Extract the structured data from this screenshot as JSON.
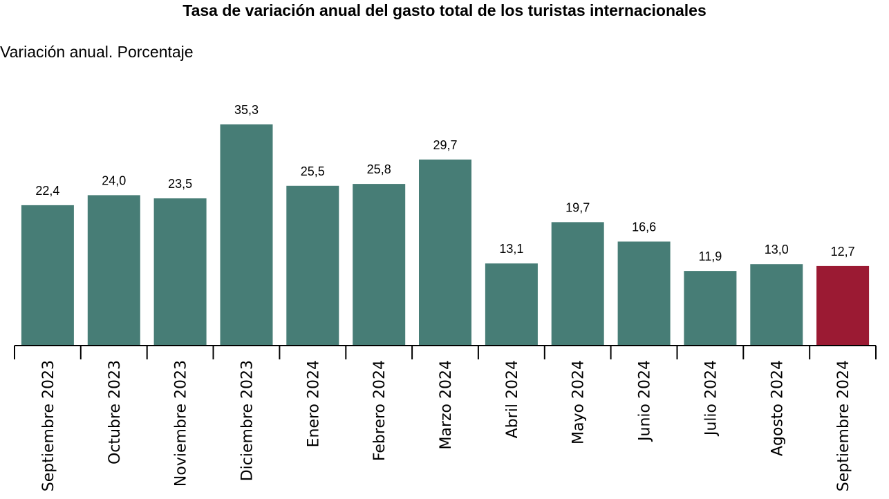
{
  "chart_data": {
    "type": "bar",
    "title": "Tasa de variación anual del gasto total de los turistas internacionales",
    "subtitle": "Variación anual. Porcentaje",
    "categories": [
      "Septiembre 2023",
      "Octubre 2023",
      "Noviembre 2023",
      "Diciembre 2023",
      "Enero 2024",
      "Febrero 2024",
      "Marzo 2024",
      "Abril 2024",
      "Mayo 2024",
      "Junio 2024",
      "Julio 2024",
      "Agosto 2024",
      "Septiembre 2024"
    ],
    "values": [
      22.4,
      24.0,
      23.5,
      35.3,
      25.5,
      25.8,
      29.7,
      13.1,
      19.7,
      16.6,
      11.9,
      13.0,
      12.7
    ],
    "value_labels": [
      "22,4",
      "24,0",
      "23,5",
      "35,3",
      "25,5",
      "25,8",
      "29,7",
      "13,1",
      "19,7",
      "16,6",
      "11,9",
      "13,0",
      "12,7"
    ],
    "highlight_index": 12,
    "colors": {
      "bar": "#477d76",
      "highlight": "#9b1a33",
      "axis": "#000000"
    },
    "ylim": [
      0,
      35.3
    ],
    "grid": false,
    "legend": "none"
  }
}
